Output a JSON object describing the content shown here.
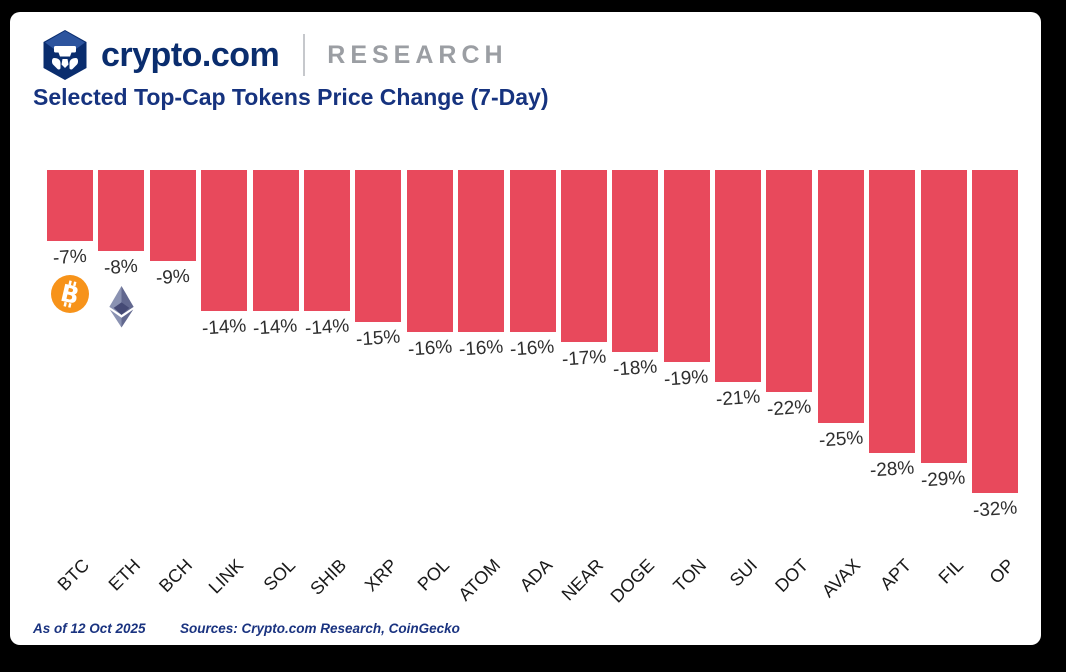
{
  "header": {
    "brand": "crypto.com",
    "research_label": "RESEARCH"
  },
  "title": "Selected Top-Cap Tokens Price Change (7-Day)",
  "footer": {
    "as_of": "As of 12 Oct 2025",
    "sources": "Sources: Crypto.com Research, CoinGecko"
  },
  "colors": {
    "bar": "#E8495C",
    "brand_navy": "#0A2D6E",
    "logo_light_blue": "#2C549E",
    "title_navy": "#16337F",
    "research_gray": "#9B9EA3",
    "value_label": "#2E2E2E",
    "tick_label": "#1A1A1A",
    "btc_orange": "#F7931A",
    "eth_light": "#8A92B2",
    "eth_dark": "#62688F",
    "eth_inner": "#454A75"
  },
  "chart_data": {
    "type": "bar",
    "title": "Selected Top-Cap Tokens Price Change (7-Day)",
    "categories": [
      "BTC",
      "ETH",
      "BCH",
      "LINK",
      "SOL",
      "SHIB",
      "XRP",
      "POL",
      "ATOM",
      "ADA",
      "NEAR",
      "DOGE",
      "TON",
      "SUI",
      "DOT",
      "AVAX",
      "APT",
      "FIL",
      "OP"
    ],
    "values": [
      -7,
      -8,
      -9,
      -14,
      -14,
      -14,
      -15,
      -16,
      -16,
      -16,
      -17,
      -18,
      -19,
      -21,
      -22,
      -25,
      -28,
      -29,
      -32
    ],
    "bar_labels": [
      "-7%",
      "-8%",
      "-9%",
      "-14%",
      "-14%",
      "-14%",
      "-15%",
      "-16%",
      "-16%",
      "-16%",
      "-17%",
      "-18%",
      "-19%",
      "-21%",
      "-22%",
      "-25%",
      "-28%",
      "-29%",
      "-32%"
    ],
    "xlabel": "",
    "ylabel": "",
    "ylim": [
      -35,
      0
    ],
    "grid": false,
    "legend": "none",
    "bar_color": "#E8495C",
    "icon_annotations": [
      {
        "category": "BTC",
        "icon": "bitcoin-icon"
      },
      {
        "category": "ETH",
        "icon": "ethereum-icon"
      }
    ]
  }
}
